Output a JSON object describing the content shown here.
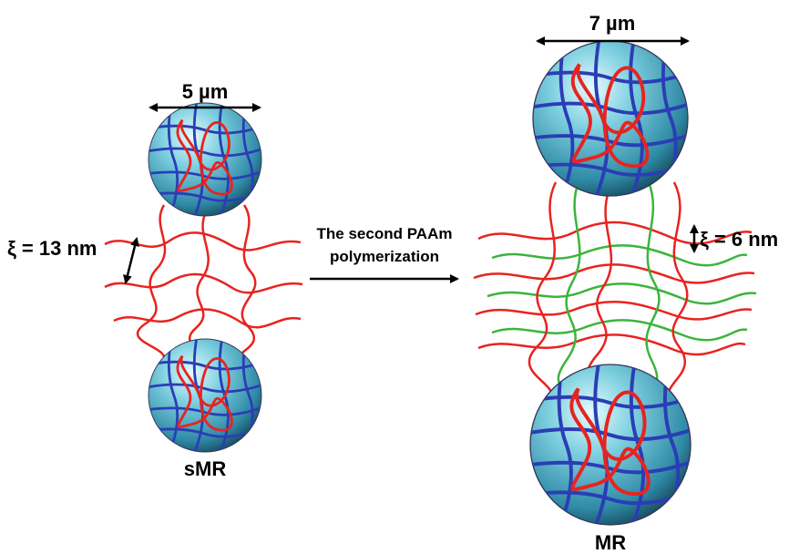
{
  "labels": {
    "left_width": "5 µm",
    "right_width": "7 µm",
    "left_mesh": "ξ = 13 nm",
    "right_mesh": "ξ = 6 nm",
    "process": [
      "The second PAAm",
      "polymerization"
    ],
    "left_name": "sMR",
    "right_name": "MR"
  }
}
